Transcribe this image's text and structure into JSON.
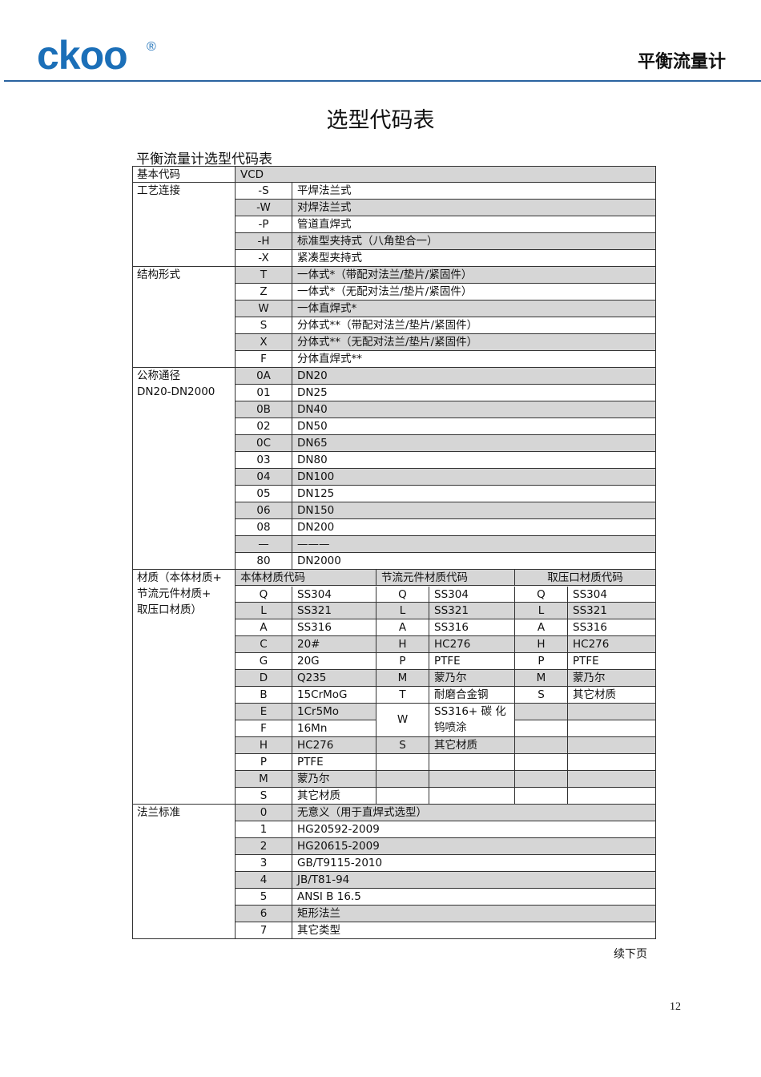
{
  "header": {
    "logo": "ckoo",
    "registered": "®",
    "product": "平衡流量计"
  },
  "page_title": "选型代码表",
  "table_title": "平衡流量计选型代码表",
  "colors": {
    "brand": "#1b6fb8",
    "row_shade": "#d6d6d6"
  },
  "sections": [
    {
      "label": "基本代码",
      "rows": [
        {
          "code": "VCD",
          "desc": ""
        }
      ]
    },
    {
      "label": "工艺连接",
      "rows": [
        {
          "code": "-S",
          "desc": "平焊法兰式"
        },
        {
          "code": "-W",
          "desc": "对焊法兰式"
        },
        {
          "code": "-P",
          "desc": "管道直焊式"
        },
        {
          "code": "-H",
          "desc": "标准型夹持式（八角垫合一）"
        },
        {
          "code": "-X",
          "desc": "紧凑型夹持式"
        }
      ]
    },
    {
      "label": "结构形式",
      "rows": [
        {
          "code": "T",
          "desc": "一体式*（带配对法兰/垫片/紧固件）"
        },
        {
          "code": "Z",
          "desc": "一体式*（无配对法兰/垫片/紧固件）"
        },
        {
          "code": "W",
          "desc": "一体直焊式*"
        },
        {
          "code": "S",
          "desc": "分体式**（带配对法兰/垫片/紧固件）"
        },
        {
          "code": "X",
          "desc": "分体式**（无配对法兰/垫片/紧固件）"
        },
        {
          "code": "F",
          "desc": "分体直焊式**"
        }
      ]
    },
    {
      "label": "公称通径\nDN20-DN2000",
      "rows": [
        {
          "code": "0A",
          "desc": "DN20"
        },
        {
          "code": "01",
          "desc": "DN25"
        },
        {
          "code": "0B",
          "desc": "DN40"
        },
        {
          "code": "02",
          "desc": "DN50"
        },
        {
          "code": "0C",
          "desc": "DN65"
        },
        {
          "code": "03",
          "desc": "DN80"
        },
        {
          "code": "04",
          "desc": "DN100"
        },
        {
          "code": "05",
          "desc": "DN125"
        },
        {
          "code": "06",
          "desc": "DN150"
        },
        {
          "code": "08",
          "desc": "DN200"
        },
        {
          "code": "—",
          "desc": "———"
        },
        {
          "code": "80",
          "desc": "DN2000"
        }
      ]
    }
  ],
  "material": {
    "label": "材质（本体材质+\n节流元件材质+\n取压口材质）",
    "headers": [
      "本体材质代码",
      "节流元件材质代码",
      "取压口材质代码"
    ],
    "body": [
      {
        "code": "Q",
        "name": "SS304"
      },
      {
        "code": "L",
        "name": "SS321"
      },
      {
        "code": "A",
        "name": "SS316"
      },
      {
        "code": "C",
        "name": "20#"
      },
      {
        "code": "G",
        "name": "20G"
      },
      {
        "code": "D",
        "name": "Q235"
      },
      {
        "code": "B",
        "name": "15CrMoG"
      },
      {
        "code": "E",
        "name": "1Cr5Mo"
      },
      {
        "code": "F",
        "name": "16Mn"
      },
      {
        "code": "H",
        "name": "HC276"
      },
      {
        "code": "P",
        "name": "PTFE"
      },
      {
        "code": "M",
        "name": "蒙乃尔"
      },
      {
        "code": "S",
        "name": "其它材质"
      }
    ],
    "throttle": [
      {
        "code": "Q",
        "name": "SS304"
      },
      {
        "code": "L",
        "name": "SS321"
      },
      {
        "code": "A",
        "name": "SS316"
      },
      {
        "code": "H",
        "name": "HC276"
      },
      {
        "code": "P",
        "name": "PTFE"
      },
      {
        "code": "M",
        "name": "蒙乃尔"
      },
      {
        "code": "T",
        "name": "耐磨合金钢"
      },
      {
        "code": "W",
        "name": "SS316+ 碳 化\n钨喷涂"
      },
      {
        "code": "S",
        "name": "其它材质"
      }
    ],
    "tap": [
      {
        "code": "Q",
        "name": "SS304"
      },
      {
        "code": "L",
        "name": "SS321"
      },
      {
        "code": "A",
        "name": "SS316"
      },
      {
        "code": "H",
        "name": "HC276"
      },
      {
        "code": "P",
        "name": "PTFE"
      },
      {
        "code": "M",
        "name": "蒙乃尔"
      },
      {
        "code": "S",
        "name": "其它材质"
      }
    ]
  },
  "flange": {
    "label": "法兰标准",
    "rows": [
      {
        "code": "0",
        "desc": "无意义（用于直焊式选型）"
      },
      {
        "code": "1",
        "desc": "HG20592-2009"
      },
      {
        "code": "2",
        "desc": "HG20615-2009"
      },
      {
        "code": "3",
        "desc": "GB/T9115-2010"
      },
      {
        "code": "4",
        "desc": "JB/T81-94"
      },
      {
        "code": "5",
        "desc": "ANSI B 16.5"
      },
      {
        "code": "6",
        "desc": "矩形法兰"
      },
      {
        "code": "7",
        "desc": "其它类型"
      }
    ]
  },
  "footer": {
    "continued": "续下页",
    "page_number": "12"
  }
}
